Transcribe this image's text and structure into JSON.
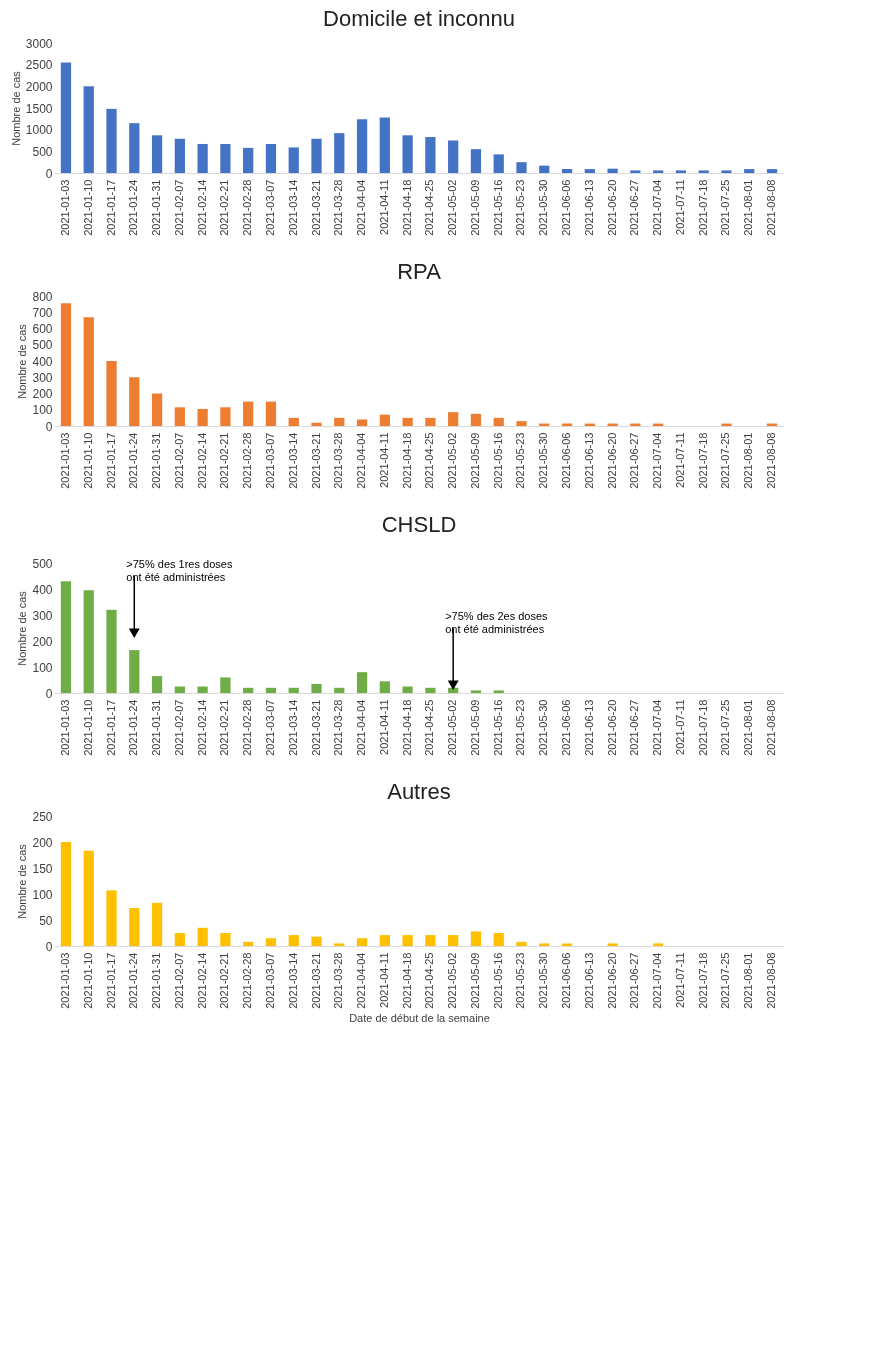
{
  "chart_data": [
    {
      "type": "bar",
      "title": "Domicile et inconnu",
      "ylabel": "Nombre de cas",
      "categories": [
        "2021-01-03",
        "2021-01-10",
        "2021-01-17",
        "2021-01-24",
        "2021-01-31",
        "2021-02-07",
        "2021-02-14",
        "2021-02-21",
        "2021-02-28",
        "2021-03-07",
        "2021-03-14",
        "2021-03-21",
        "2021-03-28",
        "2021-04-04",
        "2021-04-11",
        "2021-04-18",
        "2021-04-25",
        "2021-05-02",
        "2021-05-09",
        "2021-05-16",
        "2021-05-23",
        "2021-05-30",
        "2021-06-06",
        "2021-06-13",
        "2021-06-20",
        "2021-06-27",
        "2021-07-04",
        "2021-07-11",
        "2021-07-18",
        "2021-07-25",
        "2021-08-01",
        "2021-08-08"
      ],
      "series": [
        {
          "color": "#4472c4",
          "values": [
            2550,
            2000,
            1480,
            1150,
            870,
            790,
            670,
            670,
            580,
            670,
            590,
            790,
            920,
            1240,
            1280,
            870,
            830,
            750,
            550,
            430,
            250,
            170,
            90,
            90,
            100,
            60,
            60,
            60,
            60,
            60,
            90,
            90
          ]
        }
      ],
      "ylim": [
        0,
        3000
      ],
      "yticks": [
        0,
        500,
        1000,
        1500,
        2000,
        2500,
        3000
      ],
      "grid": false,
      "legend": false
    },
    {
      "type": "bar",
      "title": "RPA",
      "ylabel": "Nombre de cas",
      "categories": [
        "2021-01-03",
        "2021-01-10",
        "2021-01-17",
        "2021-01-24",
        "2021-01-31",
        "2021-02-07",
        "2021-02-14",
        "2021-02-21",
        "2021-02-28",
        "2021-03-07",
        "2021-03-14",
        "2021-03-21",
        "2021-03-28",
        "2021-04-04",
        "2021-04-11",
        "2021-04-18",
        "2021-04-25",
        "2021-05-02",
        "2021-05-09",
        "2021-05-16",
        "2021-05-23",
        "2021-05-30",
        "2021-06-06",
        "2021-06-13",
        "2021-06-20",
        "2021-06-27",
        "2021-07-04",
        "2021-07-11",
        "2021-07-18",
        "2021-07-25",
        "2021-08-01",
        "2021-08-08"
      ],
      "series": [
        {
          "color": "#ed7d31",
          "values": [
            755,
            670,
            400,
            300,
            200,
            115,
            105,
            115,
            150,
            150,
            50,
            20,
            50,
            40,
            70,
            50,
            50,
            85,
            75,
            50,
            30,
            15,
            15,
            15,
            15,
            15,
            15,
            0,
            0,
            15,
            0,
            15
          ]
        }
      ],
      "ylim": [
        0,
        800
      ],
      "yticks": [
        0,
        100,
        200,
        300,
        400,
        500,
        600,
        700,
        800
      ],
      "grid": false,
      "legend": false
    },
    {
      "type": "bar",
      "title": "CHSLD",
      "ylabel": "Nombre de cas",
      "categories": [
        "2021-01-03",
        "2021-01-10",
        "2021-01-17",
        "2021-01-24",
        "2021-01-31",
        "2021-02-07",
        "2021-02-14",
        "2021-02-21",
        "2021-02-28",
        "2021-03-07",
        "2021-03-14",
        "2021-03-21",
        "2021-03-28",
        "2021-04-04",
        "2021-04-11",
        "2021-04-18",
        "2021-04-25",
        "2021-05-02",
        "2021-05-09",
        "2021-05-16",
        "2021-05-23",
        "2021-05-30",
        "2021-06-06",
        "2021-06-13",
        "2021-06-20",
        "2021-06-27",
        "2021-07-04",
        "2021-07-11",
        "2021-07-18",
        "2021-07-25",
        "2021-08-01",
        "2021-08-08"
      ],
      "series": [
        {
          "color": "#70ad47",
          "values": [
            430,
            395,
            320,
            165,
            65,
            25,
            25,
            60,
            20,
            20,
            20,
            35,
            20,
            80,
            45,
            25,
            20,
            20,
            10,
            10,
            0,
            0,
            0,
            0,
            0,
            0,
            0,
            0,
            0,
            0,
            0,
            0
          ]
        }
      ],
      "ylim": [
        0,
        500
      ],
      "yticks": [
        0,
        100,
        200,
        300,
        400,
        500
      ],
      "grid": false,
      "legend": false,
      "annotations": [
        {
          "text": ">75% des 1res doses\nont été administrées",
          "x": "2021-01-24",
          "y": 230
        },
        {
          "text": ">75% des 2es doses\nont été administrées",
          "x": "2021-05-02",
          "y": 30
        }
      ]
    },
    {
      "type": "bar",
      "title": "Autres",
      "ylabel": "Nombre de cas",
      "xlabel": "Date de début de la semaine",
      "categories": [
        "2021-01-03",
        "2021-01-10",
        "2021-01-17",
        "2021-01-24",
        "2021-01-31",
        "2021-02-07",
        "2021-02-14",
        "2021-02-21",
        "2021-02-28",
        "2021-03-07",
        "2021-03-14",
        "2021-03-21",
        "2021-03-28",
        "2021-04-04",
        "2021-04-11",
        "2021-04-18",
        "2021-04-25",
        "2021-05-02",
        "2021-05-09",
        "2021-05-16",
        "2021-05-23",
        "2021-05-30",
        "2021-06-06",
        "2021-06-13",
        "2021-06-20",
        "2021-06-27",
        "2021-07-04",
        "2021-07-11",
        "2021-07-18",
        "2021-07-25",
        "2021-08-01",
        "2021-08-08"
      ],
      "series": [
        {
          "color": "#ffc000",
          "values": [
            200,
            183,
            107,
            73,
            83,
            25,
            35,
            25,
            8,
            15,
            21,
            18,
            5,
            15,
            21,
            21,
            21,
            21,
            28,
            25,
            8,
            5,
            5,
            0,
            5,
            0,
            5,
            0,
            0,
            0,
            0,
            0
          ]
        }
      ],
      "ylim": [
        0,
        250
      ],
      "yticks": [
        0,
        50,
        100,
        150,
        200,
        250
      ],
      "grid": false,
      "legend": false
    }
  ]
}
